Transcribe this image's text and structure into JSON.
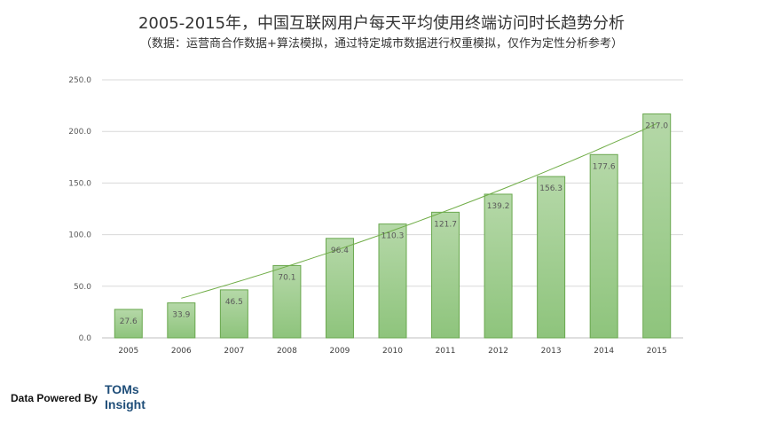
{
  "chart_data": {
    "type": "bar",
    "title": "2005-2015年，中国互联网用户每天平均使用终端访问时长趋势分析",
    "subtitle": "（数据：运营商合作数据+算法模拟，通过特定城市数据进行权重模拟，仅作为定性分析参考）",
    "categories": [
      "2005",
      "2006",
      "2007",
      "2008",
      "2009",
      "2010",
      "2011",
      "2012",
      "2013",
      "2014",
      "2015"
    ],
    "values": [
      27.6,
      33.9,
      46.5,
      70.1,
      96.4,
      110.3,
      121.7,
      139.2,
      156.3,
      177.6,
      217.0
    ],
    "value_labels": [
      "27.6",
      "33.9",
      "46.5",
      "70.1",
      "96.4",
      "110.3",
      "121.7",
      "139.2",
      "156.3",
      "177.6",
      "217.0"
    ],
    "ylim": [
      0,
      250
    ],
    "yticks": [
      "0.0",
      "50.0",
      "100.0",
      "150.0",
      "200.0",
      "250.0"
    ],
    "trendline": true,
    "grid": true,
    "colors": {
      "bar_top": "#b5d8a8",
      "bar_bottom": "#8ec47c",
      "bar_edge": "#6aa84f",
      "trend": "#70ad47"
    }
  },
  "footer": {
    "powered_by": "Data Powered By",
    "brand_line1": "TOMs",
    "brand_line2": "Insight"
  }
}
